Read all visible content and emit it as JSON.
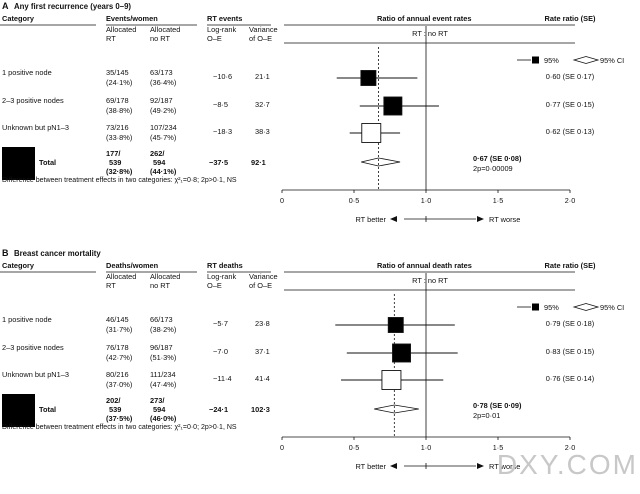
{
  "panels": [
    {
      "letter": "A",
      "title": "Any first recurrence (years 0–9)",
      "col_category": "Category",
      "col_group": "Events/women",
      "col_group_a": [
        "Allocated",
        "RT"
      ],
      "col_group_b": [
        "Allocated",
        "no RT"
      ],
      "col_events": "RT events",
      "col_oe": [
        "Log-rank",
        "O–E"
      ],
      "col_var": [
        "Variance",
        "of O–E"
      ],
      "col_ratio": "Ratio of annual event rates",
      "subheader": "RT : no RT",
      "col_rr": "Rate ratio (SE)",
      "legend_95": "95%",
      "legend_95ci": "95% CI",
      "rows": [
        {
          "label": "1 positive node",
          "rt_n": "35/145",
          "rt_pct": "(24·1%)",
          "nort_n": "63/173",
          "nort_pct": "(36·4%)",
          "oe": "−10·6",
          "var": "21·1",
          "rr": "0·60 (SE 0·17)",
          "point": 0.6,
          "ci99": [
            0.38,
            0.94
          ],
          "box": "filled",
          "size": 15
        },
        {
          "label": "2–3 positive nodes",
          "rt_n": "69/178",
          "rt_pct": "(38·8%)",
          "nort_n": "92/187",
          "nort_pct": "(49·2%)",
          "oe": "−8·5",
          "var": "32·7",
          "rr": "0·77 (SE 0·15)",
          "point": 0.77,
          "ci99": [
            0.54,
            1.09
          ],
          "box": "filled",
          "size": 18
        },
        {
          "label": "Unknown but pN1–3",
          "rt_n": "73/216",
          "rt_pct": "(33·8%)",
          "nort_n": "107/234",
          "nort_pct": "(45·7%)",
          "oe": "−18·3",
          "var": "38·3",
          "rr": "0·62 (SE 0·13)",
          "point": 0.62,
          "ci99": [
            0.47,
            0.82
          ],
          "box": "open",
          "size": 19
        }
      ],
      "total": {
        "label": "Total",
        "rt_n": [
          "177/",
          "539"
        ],
        "rt_pct": "(32·8%)",
        "nort_n": [
          "262/",
          "594"
        ],
        "nort_pct": "(44·1%)",
        "oe": "−37·5",
        "var": "92·1",
        "rr": "0·67 (SE 0·08)",
        "p": "2p=0·00009",
        "point": 0.67,
        "ci95": [
          0.55,
          0.82
        ]
      },
      "heterogeneity": "Difference between treatment effects in two categories: χ²₁=0·8; 2p>0·1, NS",
      "axis_ticks": [
        "0",
        "0·5",
        "1·0",
        "1·5",
        "2·0"
      ],
      "rt_better": "RT better",
      "rt_worse": "RT worse"
    },
    {
      "letter": "B",
      "title": "Breast cancer mortality",
      "col_category": "Category",
      "col_group": "Deaths/women",
      "col_group_a": [
        "Allocated",
        "RT"
      ],
      "col_group_b": [
        "Allocated",
        "no RT"
      ],
      "col_events": "RT deaths",
      "col_oe": [
        "Log-rank",
        "O–E"
      ],
      "col_var": [
        "Variance",
        "of O–E"
      ],
      "col_ratio": "Ratio of annual death rates",
      "subheader": "RT : no RT",
      "col_rr": "Rate ratio (SE)",
      "legend_95": "95%",
      "legend_95ci": "95% CI",
      "rows": [
        {
          "label": "1 positive node",
          "rt_n": "46/145",
          "rt_pct": "(31·7%)",
          "nort_n": "66/173",
          "nort_pct": "(38·2%)",
          "oe": "−5·7",
          "var": "23·8",
          "rr": "0·79 (SE 0·18)",
          "point": 0.79,
          "ci99": [
            0.37,
            1.2
          ],
          "box": "filled",
          "size": 15
        },
        {
          "label": "2–3 positive nodes",
          "rt_n": "76/178",
          "rt_pct": "(42·7%)",
          "nort_n": "96/187",
          "nort_pct": "(51·3%)",
          "oe": "−7·0",
          "var": "37·1",
          "rr": "0·83 (SE 0·15)",
          "point": 0.83,
          "ci99": [
            0.45,
            1.22
          ],
          "box": "filled",
          "size": 18
        },
        {
          "label": "Unknown but pN1–3",
          "rt_n": "80/216",
          "rt_pct": "(37·0%)",
          "nort_n": "111/234",
          "nort_pct": "(47·4%)",
          "oe": "−11·4",
          "var": "41·4",
          "rr": "0·76 (SE 0·14)",
          "point": 0.76,
          "ci99": [
            0.41,
            1.12
          ],
          "box": "open",
          "size": 19
        }
      ],
      "total": {
        "label": "Total",
        "rt_n": [
          "202/",
          "539"
        ],
        "rt_pct": "(37·5%)",
        "nort_n": [
          "273/",
          "594"
        ],
        "nort_pct": "(46·0%)",
        "oe": "−24·1",
        "var": "102·3",
        "rr": "0·78 (SE 0·09)",
        "p": "2p=0·01",
        "point": 0.78,
        "ci95": [
          0.64,
          0.95
        ]
      },
      "heterogeneity": "Difference between treatment effects in two categories: χ²₁=0·0; 2p>0·1, NS",
      "axis_ticks": [
        "0",
        "0·5",
        "1·0",
        "1·5",
        "2·0"
      ],
      "rt_better": "RT better",
      "rt_worse": "RT worse"
    }
  ],
  "watermark": "DXY.COM",
  "colors": {
    "ink": "#111111",
    "box_fill": "#000000",
    "open_fill": "#ffffff",
    "total_block": "#000000",
    "watermark": "#c8c8c8"
  },
  "chart_data": [
    {
      "type": "forest",
      "title": "Any first recurrence (years 0–9)",
      "xlabel": "RT : no RT",
      "xlim": [
        0,
        2
      ],
      "reference_line": 1.0,
      "categories": [
        "1 positive node",
        "2–3 positive nodes",
        "Unknown but pN1–3",
        "Total"
      ],
      "rate_ratio": [
        0.6,
        0.77,
        0.62,
        0.67
      ],
      "se": [
        0.17,
        0.15,
        0.13,
        0.08
      ],
      "ci_low": [
        0.38,
        0.54,
        0.47,
        0.55
      ],
      "ci_high": [
        0.94,
        1.09,
        0.82,
        0.82
      ],
      "events_rt": [
        "35/145",
        "69/178",
        "73/216",
        "177/539"
      ],
      "events_nort": [
        "63/173",
        "92/187",
        "107/234",
        "262/594"
      ],
      "logrank_oe": [
        -10.6,
        -8.5,
        -18.3,
        -37.5
      ],
      "variance": [
        21.1,
        32.7,
        38.3,
        92.1
      ],
      "p_total": "2p=0·00009"
    },
    {
      "type": "forest",
      "title": "Breast cancer mortality",
      "xlabel": "RT : no RT",
      "xlim": [
        0,
        2
      ],
      "reference_line": 1.0,
      "categories": [
        "1 positive node",
        "2–3 positive nodes",
        "Unknown but pN1–3",
        "Total"
      ],
      "rate_ratio": [
        0.79,
        0.83,
        0.76,
        0.78
      ],
      "se": [
        0.18,
        0.15,
        0.14,
        0.09
      ],
      "ci_low": [
        0.37,
        0.45,
        0.41,
        0.64
      ],
      "ci_high": [
        1.2,
        1.22,
        1.12,
        0.95
      ],
      "events_rt": [
        "46/145",
        "76/178",
        "80/216",
        "202/539"
      ],
      "events_nort": [
        "66/173",
        "96/187",
        "111/234",
        "273/594"
      ],
      "logrank_oe": [
        -5.7,
        -7.0,
        -11.4,
        -24.1
      ],
      "variance": [
        23.8,
        37.1,
        41.4,
        102.3
      ],
      "p_total": "2p=0·01"
    }
  ]
}
